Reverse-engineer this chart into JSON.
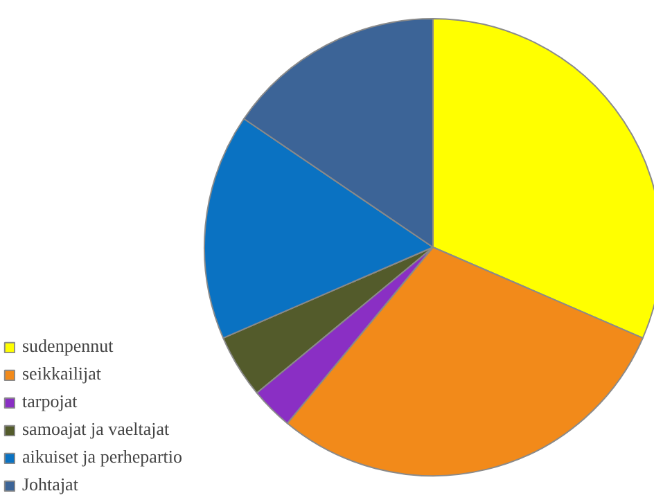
{
  "chart_data": {
    "type": "pie",
    "categories": [
      "sudenpennut",
      "seikkailijat",
      "tarpojat",
      "samoajat ja vaeltajat",
      "aikuiset ja perhepartio",
      "Johtajat"
    ],
    "values": [
      31.5,
      29.5,
      3,
      4.5,
      16,
      15.5
    ],
    "colors": [
      "#ffff00",
      "#f28a1a",
      "#8a2fc4",
      "#535b2b",
      "#0a72c2",
      "#3c6497"
    ],
    "legend": "bottom left"
  }
}
